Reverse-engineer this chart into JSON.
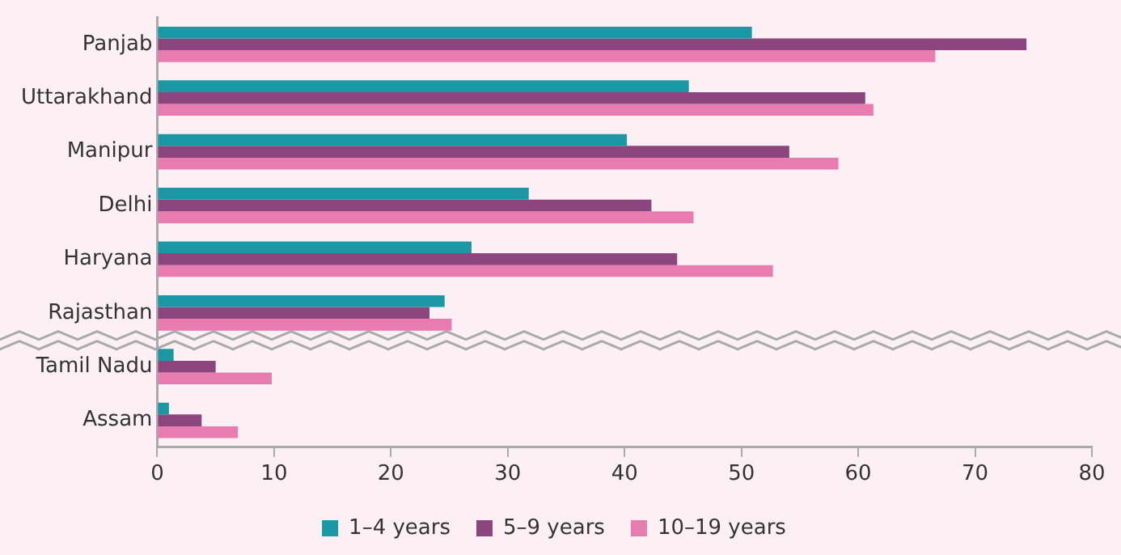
{
  "chart_data": {
    "type": "bar",
    "orientation": "horizontal",
    "categories": [
      "Panjab",
      "Uttarakhand",
      "Manipur",
      "Delhi",
      "Haryana",
      "Rajasthan",
      "Tamil Nadu",
      "Assam"
    ],
    "series": [
      {
        "name": "1–4 years",
        "color": "#1a98a6",
        "values": [
          50.9,
          45.5,
          40.2,
          31.8,
          26.9,
          24.6,
          1.4,
          1.0
        ]
      },
      {
        "name": "5–9 years",
        "color": "#8c457f",
        "values": [
          74.4,
          60.6,
          54.1,
          42.3,
          44.5,
          23.3,
          5.0,
          3.8
        ]
      },
      {
        "name": "10–19 years",
        "color": "#e87bb0",
        "values": [
          66.6,
          61.3,
          58.3,
          45.9,
          52.7,
          25.2,
          9.8,
          6.9
        ]
      }
    ],
    "xlim": [
      0,
      80
    ],
    "xticks": [
      0,
      10,
      20,
      30,
      40,
      50,
      60,
      70,
      80
    ],
    "grid": false,
    "legend": "bottom"
  }
}
